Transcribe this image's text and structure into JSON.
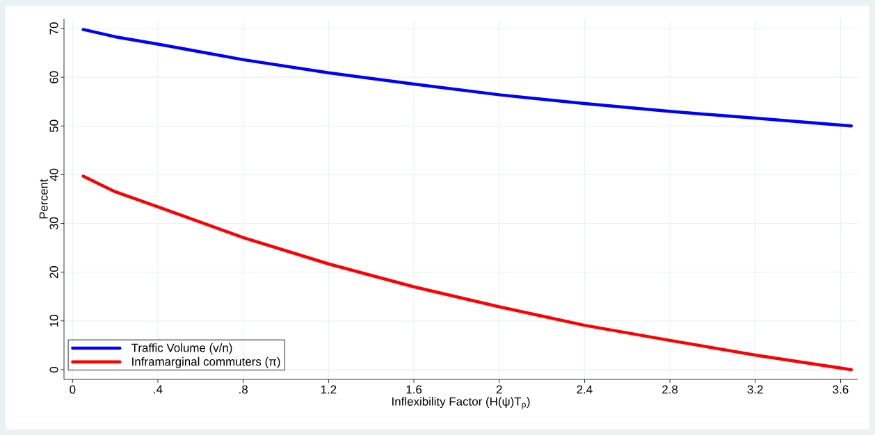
{
  "chart_data": {
    "type": "line",
    "xlabel": "Inflexibility Factor (H(ψ)T$_{ρ}$)",
    "ylabel": "Percent",
    "x": [
      0.05,
      0.2,
      0.4,
      0.8,
      1.2,
      1.6,
      2.0,
      2.4,
      2.8,
      3.2,
      3.65
    ],
    "series": [
      {
        "name": "Traffic Volume (v/n)",
        "color": "#0000ff",
        "values": [
          69.8,
          68.3,
          66.8,
          63.6,
          60.9,
          58.6,
          56.4,
          54.6,
          53.0,
          51.6,
          50.0
        ]
      },
      {
        "name": "Inframarginal commuters (π)",
        "color": "#ff0000",
        "values": [
          39.7,
          36.5,
          33.4,
          27.1,
          21.7,
          17.0,
          12.9,
          9.1,
          6.0,
          3.0,
          0.0
        ]
      }
    ],
    "xlim": [
      -0.04,
      3.68
    ],
    "ylim": [
      -2,
      72
    ],
    "xticks": [
      0,
      {
        "value": 0.4,
        "label": ".4"
      },
      {
        "value": 0.8,
        "label": ".8"
      },
      1.2,
      1.6,
      2,
      2.4,
      2.8,
      3.2,
      3.6
    ],
    "yticks": [
      0,
      10,
      20,
      30,
      40,
      50,
      60,
      70
    ],
    "grid": true,
    "legend": "bottom left",
    "marker": "none",
    "line_style": "solid"
  }
}
